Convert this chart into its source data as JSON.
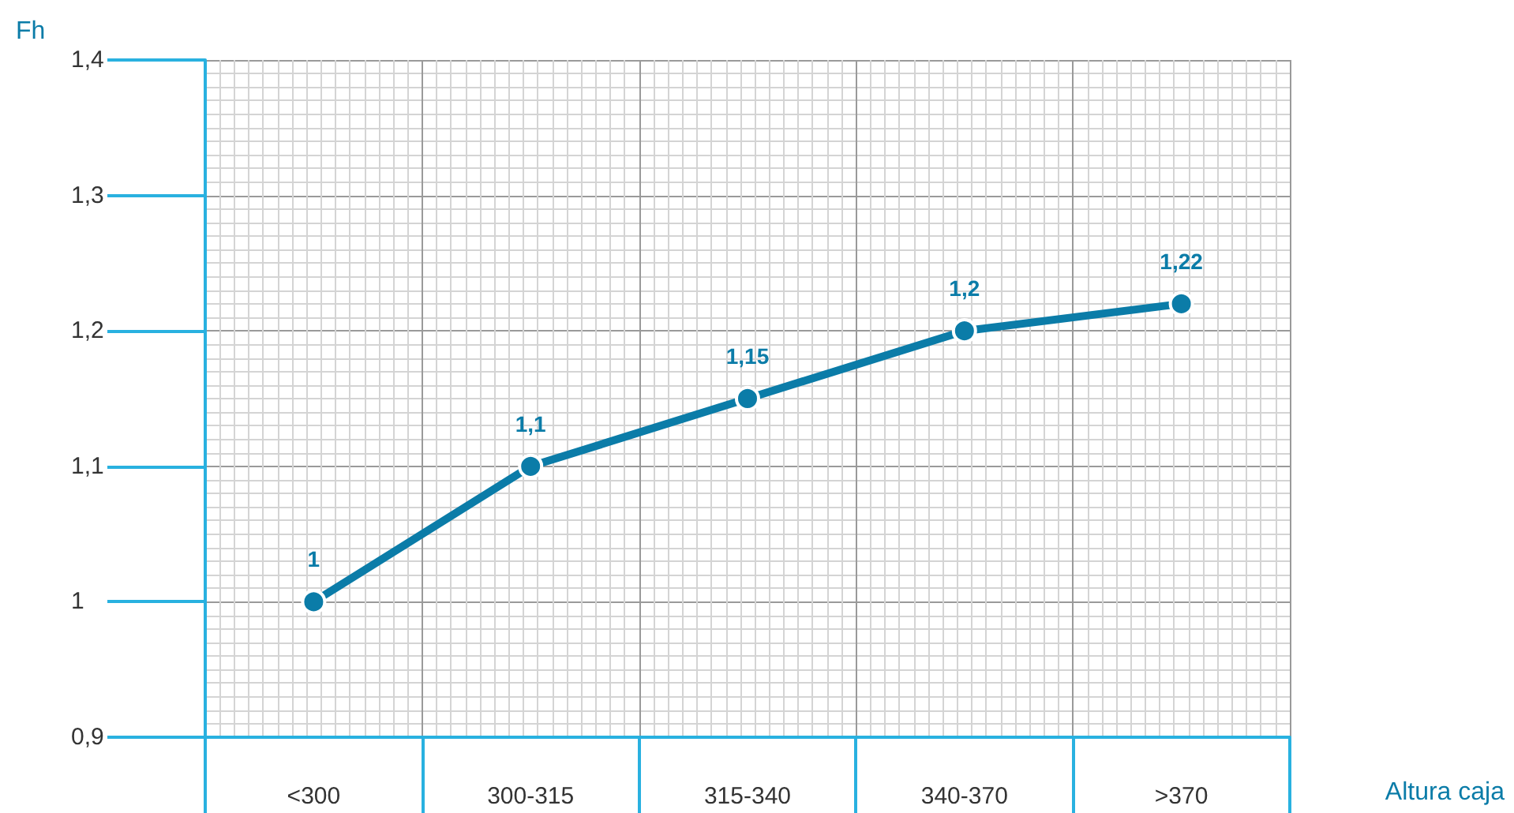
{
  "chart_data": {
    "type": "line",
    "xlabel": "Altura caja",
    "ylabel": "Fh",
    "categories": [
      "<300",
      "300-315",
      "315-340",
      "340-370",
      ">370"
    ],
    "series": [
      {
        "color": "#0b7ca8",
        "values": [
          1,
          1.1,
          1.15,
          1.2,
          1.22
        ],
        "value_labels": [
          "1",
          "1,1",
          "1,15",
          "1,2",
          "1,22"
        ]
      }
    ],
    "ylim": [
      0.9,
      1.4
    ],
    "yticks": [
      {
        "value": 0.9,
        "label": "0,9"
      },
      {
        "value": 1,
        "label": "1"
      },
      {
        "value": 1.1,
        "label": "1,1"
      },
      {
        "value": 1.2,
        "label": "1,2"
      },
      {
        "value": 1.3,
        "label": "1,3"
      },
      {
        "value": 1.4,
        "label": "1,4"
      }
    ],
    "grid": true,
    "marker": "circle",
    "line_style": "solid"
  }
}
